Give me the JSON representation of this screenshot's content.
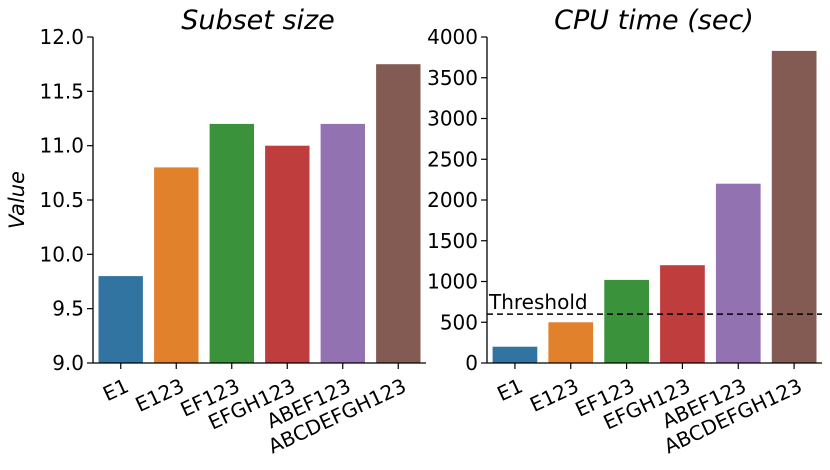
{
  "chart_data": [
    {
      "type": "bar",
      "title": "Subset size",
      "xlabel": "",
      "ylabel": "Value",
      "categories": [
        "E1",
        "E123",
        "EF123",
        "EFGH123",
        "ABEF123",
        "ABCDEFGH123"
      ],
      "values": [
        9.8,
        10.8,
        11.2,
        11.0,
        11.2,
        11.75
      ],
      "colors": [
        "#3274a1",
        "#e1812c",
        "#3a923a",
        "#c03d3e",
        "#9372b2",
        "#845b53"
      ],
      "ylim": [
        9.0,
        12.0
      ],
      "yticks": [
        "9.0",
        "9.5",
        "10.0",
        "10.5",
        "11.0",
        "11.5",
        "12.0"
      ],
      "grid": false
    },
    {
      "type": "bar",
      "title": "CPU time (sec)",
      "xlabel": "",
      "ylabel": "",
      "categories": [
        "E1",
        "E123",
        "EF123",
        "EFGH123",
        "ABEF123",
        "ABCDEFGH123"
      ],
      "values": [
        200,
        500,
        1020,
        1200,
        2200,
        3830
      ],
      "colors": [
        "#3274a1",
        "#e1812c",
        "#3a923a",
        "#c03d3e",
        "#9372b2",
        "#845b53"
      ],
      "ylim": [
        0,
        4000
      ],
      "yticks": [
        "0",
        "500",
        "1000",
        "1500",
        "2000",
        "2500",
        "3000",
        "3500",
        "4000"
      ],
      "grid": false,
      "threshold": {
        "value": 600,
        "label": "Threshold"
      }
    }
  ]
}
